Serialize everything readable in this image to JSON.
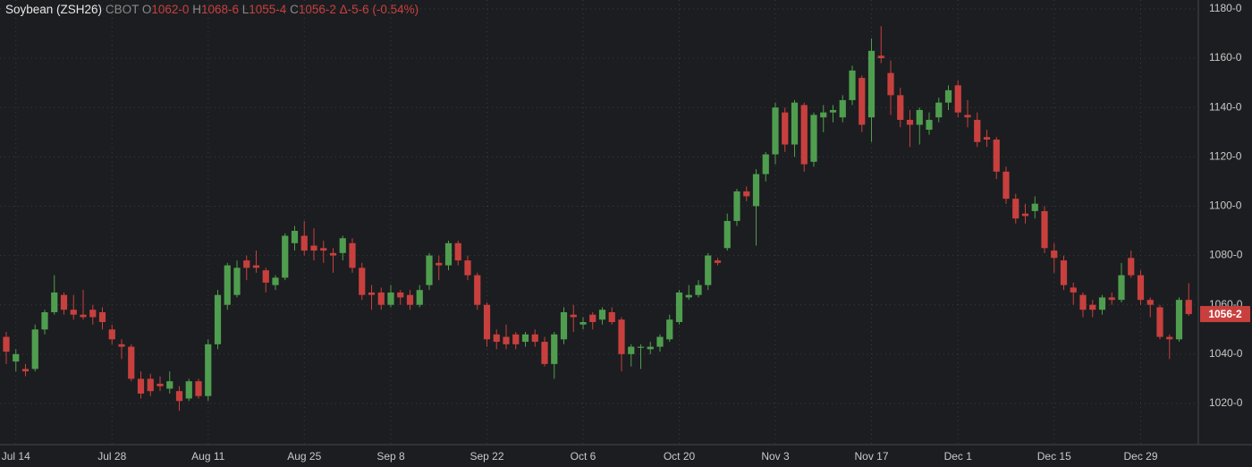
{
  "chart_data": {
    "type": "candlestick",
    "header": {
      "symbol": "Soybean (ZSH26)",
      "exchange": "CBOT",
      "o_label": "O",
      "o_value": "1062-0",
      "h_label": "H",
      "h_value": "1068-6",
      "l_label": "L",
      "l_value": "1055-4",
      "c_label": "C",
      "c_value": "1056-2",
      "change": "Δ-5-6 (-0.54%)"
    },
    "last_label": "1056-2",
    "up_color": "#4f9e4f",
    "down_color": "#c8403e",
    "grid": true,
    "ylim": [
      1003.3,
      1183.6
    ],
    "yticks": [
      {
        "value": 1020,
        "label": "1020-0"
      },
      {
        "value": 1040,
        "label": "1040-0"
      },
      {
        "value": 1060,
        "label": "1060-0"
      },
      {
        "value": 1080,
        "label": "1080-0"
      },
      {
        "value": 1100,
        "label": "1100-0"
      },
      {
        "value": 1120,
        "label": "1120-0"
      },
      {
        "value": 1140,
        "label": "1140-0"
      },
      {
        "value": 1160,
        "label": "1160-0"
      },
      {
        "value": 1180,
        "label": "1180-0"
      }
    ],
    "categories": [
      null,
      "Jul 14",
      null,
      null,
      null,
      null,
      null,
      null,
      null,
      null,
      null,
      "Jul 28",
      null,
      null,
      null,
      null,
      null,
      null,
      null,
      null,
      null,
      "Aug 11",
      null,
      null,
      null,
      null,
      null,
      null,
      null,
      null,
      null,
      "Aug 25",
      null,
      null,
      null,
      null,
      null,
      null,
      null,
      null,
      "Sep 8",
      null,
      null,
      null,
      null,
      null,
      null,
      null,
      null,
      null,
      "Sep 22",
      null,
      null,
      null,
      null,
      null,
      null,
      null,
      null,
      null,
      "Oct 6",
      null,
      null,
      null,
      null,
      null,
      null,
      null,
      null,
      null,
      "Oct 20",
      null,
      null,
      null,
      null,
      null,
      null,
      null,
      null,
      null,
      "Nov 3",
      null,
      null,
      null,
      null,
      null,
      null,
      null,
      null,
      null,
      "Nov 17",
      null,
      null,
      null,
      null,
      null,
      null,
      null,
      null,
      "Dec 1",
      null,
      null,
      null,
      null,
      null,
      null,
      null,
      null,
      null,
      "Dec 15",
      null,
      null,
      null,
      null,
      null,
      null,
      null,
      null,
      "Dec 29",
      null,
      null,
      null,
      null,
      null
    ],
    "open": [
      1047,
      1037,
      1034,
      1034,
      1050,
      1057,
      1064,
      1058,
      1056,
      1058,
      1057,
      1050,
      1044,
      1043,
      1030,
      1030,
      1028,
      1026,
      1025,
      1022,
      1029,
      1023,
      1044,
      1060,
      1064,
      1078,
      1076,
      1074,
      1068,
      1071,
      1085,
      1088,
      1084,
      1083,
      1081,
      1081,
      1085,
      1075,
      1065,
      1065,
      1060,
      1065,
      1064,
      1060,
      1068,
      1077,
      1076,
      1085,
      1078,
      1072,
      1060,
      1048,
      1047,
      1048,
      1045,
      1048,
      1045,
      1036,
      1046,
      1056,
      1052,
      1056,
      1054,
      1057,
      1054,
      1040,
      1043,
      1042,
      1043,
      1046,
      1053,
      1063,
      1064,
      1068,
      1078,
      1083,
      1094,
      1106,
      1100,
      1113,
      1121,
      1138,
      1125,
      1141,
      1118,
      1136,
      1138,
      1136,
      1143,
      1152,
      1136,
      1161,
      1154,
      1145,
      1135,
      1133,
      1131,
      1136,
      1142,
      1149,
      1137,
      1135,
      1128,
      1127,
      1114,
      1103,
      1097,
      1098,
      1098,
      1082,
      1078,
      1067,
      1064,
      1060,
      1058,
      1063,
      1062,
      1079,
      1072,
      1062,
      1059,
      1047,
      1046,
      1062
    ],
    "high": [
      1049,
      1042,
      1036,
      1052,
      1058,
      1072,
      1065,
      1064,
      1066,
      1060,
      1059,
      1052,
      1046,
      1044,
      1033,
      1032,
      1031,
      1033,
      1027,
      1030,
      1030,
      1046,
      1066,
      1077,
      1078,
      1080,
      1082,
      1075,
      1072,
      1089,
      1092,
      1094,
      1091,
      1086,
      1083,
      1088,
      1087,
      1077,
      1068,
      1067,
      1068,
      1066,
      1066,
      1068,
      1081,
      1080,
      1086,
      1086,
      1080,
      1073,
      1061,
      1050,
      1052,
      1049,
      1049,
      1050,
      1047,
      1049,
      1059,
      1060,
      1055,
      1057,
      1059,
      1059,
      1055,
      1044,
      1044,
      1045,
      1048,
      1056,
      1066,
      1068,
      1070,
      1081,
      1079,
      1097,
      1107,
      1108,
      1115,
      1122,
      1142,
      1140,
      1143,
      1142,
      1138,
      1141,
      1141,
      1145,
      1157,
      1153,
      1168,
      1173,
      1159,
      1148,
      1139,
      1140,
      1138,
      1144,
      1149,
      1151,
      1143,
      1138,
      1131,
      1128,
      1116,
      1105,
      1101,
      1104,
      1100,
      1085,
      1080,
      1069,
      1065,
      1062,
      1064,
      1065,
      1077,
      1082,
      1074,
      1063,
      1060,
      1048,
      1063,
      1068.75
    ],
    "low": [
      1036,
      1033,
      1031,
      1033,
      1048,
      1056,
      1056,
      1054,
      1054,
      1052,
      1050,
      1044,
      1038,
      1029,
      1022,
      1023,
      1025,
      1024,
      1017,
      1021,
      1022,
      1021,
      1042,
      1058,
      1063,
      1070,
      1073,
      1065,
      1066,
      1070,
      1082,
      1080,
      1078,
      1077,
      1073,
      1078,
      1073,
      1062,
      1058,
      1058,
      1059,
      1060,
      1058,
      1059,
      1066,
      1070,
      1074,
      1076,
      1070,
      1058,
      1043,
      1042,
      1042,
      1042,
      1043,
      1043,
      1035,
      1030,
      1044,
      1049,
      1050,
      1050,
      1052,
      1052,
      1033,
      1035,
      1034,
      1040,
      1041,
      1045,
      1052,
      1062,
      1063,
      1066,
      1076,
      1082,
      1092,
      1102,
      1084,
      1110,
      1117,
      1122,
      1120,
      1114,
      1116,
      1130,
      1134,
      1134,
      1141,
      1130,
      1126,
      1158,
      1137,
      1132,
      1124,
      1125,
      1129,
      1134,
      1139,
      1136,
      1132,
      1124,
      1124,
      1111,
      1101,
      1093,
      1093,
      1095,
      1081,
      1073,
      1066,
      1060,
      1055,
      1055,
      1056,
      1060,
      1061,
      1071,
      1060,
      1055,
      1046,
      1038,
      1045,
      1055.5
    ],
    "close": [
      1041,
      1040,
      1033,
      1050,
      1057,
      1065,
      1058,
      1056,
      1055,
      1055,
      1053,
      1046,
      1043,
      1030,
      1024,
      1025,
      1027,
      1029,
      1021,
      1029,
      1023,
      1044,
      1064,
      1076,
      1075,
      1075,
      1075,
      1069,
      1071,
      1088,
      1090,
      1082,
      1082,
      1082,
      1080,
      1087,
      1075,
      1064,
      1064,
      1060,
      1065,
      1063,
      1060,
      1066,
      1080,
      1076,
      1085,
      1078,
      1072,
      1060,
      1046,
      1045,
      1044,
      1044,
      1048,
      1045,
      1036,
      1048,
      1057,
      1055,
      1053,
      1053,
      1058,
      1053,
      1040,
      1043,
      1043,
      1043,
      1047,
      1054,
      1065,
      1064,
      1068,
      1080,
      1077,
      1094,
      1106,
      1104,
      1113,
      1121,
      1140,
      1125,
      1142,
      1117,
      1137,
      1138,
      1139,
      1143,
      1155,
      1133,
      1163,
      1160,
      1145,
      1135,
      1133,
      1139,
      1135,
      1142,
      1147,
      1138,
      1136,
      1126,
      1127,
      1114,
      1103,
      1095,
      1096,
      1101,
      1083,
      1079,
      1068,
      1065,
      1058,
      1058,
      1063,
      1062,
      1072,
      1072,
      1062,
      1060,
      1047,
      1046,
      1062,
      1056.25
    ]
  }
}
